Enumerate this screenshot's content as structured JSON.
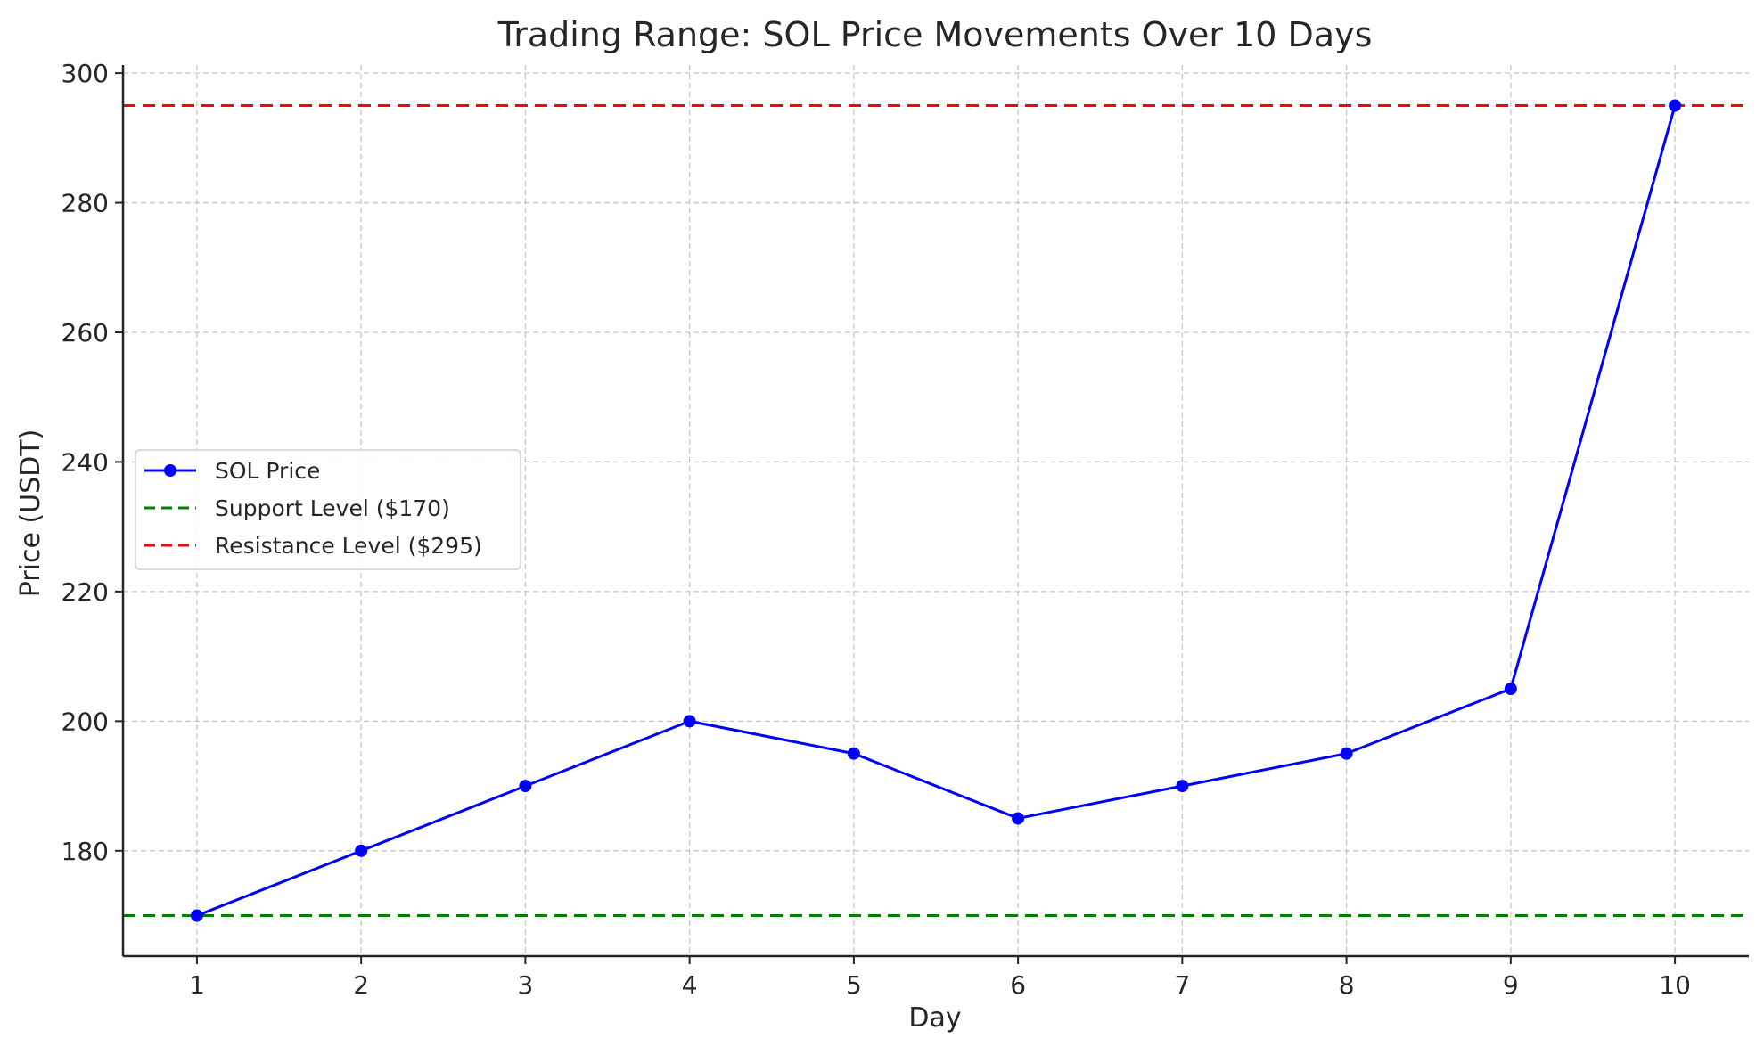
{
  "chart_data": {
    "type": "line",
    "title": "Trading Range: SOL Price Movements Over 10 Days",
    "xlabel": "Day",
    "ylabel": "Price (USDT)",
    "x": [
      1,
      2,
      3,
      4,
      5,
      6,
      7,
      8,
      9,
      10
    ],
    "series": [
      {
        "name": "SOL Price",
        "values": [
          170,
          180,
          190,
          200,
          195,
          185,
          190,
          195,
          205,
          295
        ],
        "color": "#0000ff",
        "marker": "circle"
      }
    ],
    "hlines": [
      {
        "name": "Support Level ($170)",
        "value": 170,
        "color": "#008000",
        "style": "dashed"
      },
      {
        "name": "Resistance Level ($295)",
        "value": 295,
        "color": "#ff0000",
        "style": "dashed"
      }
    ],
    "xticks": [
      "1",
      "2",
      "3",
      "4",
      "5",
      "6",
      "7",
      "8",
      "9",
      "10"
    ],
    "yticks": [
      "180",
      "200",
      "220",
      "240",
      "260",
      "280",
      "300"
    ],
    "xlim": [
      0.55,
      10.45
    ],
    "ylim": [
      163.75,
      301.25
    ],
    "grid": true,
    "legend_position": "center-left"
  }
}
